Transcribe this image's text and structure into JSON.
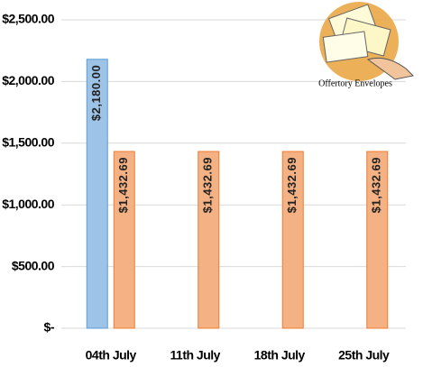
{
  "chart_data": {
    "type": "bar",
    "annotation": "Offertory Envelopes",
    "categories": [
      "04th July",
      "11th July",
      "18th July",
      "25th July"
    ],
    "series": [
      {
        "color": "#9dc3e6",
        "values": [
          2180,
          null,
          null,
          null
        ],
        "value_labels": [
          "$2,180.00",
          null,
          null,
          null
        ]
      },
      {
        "color": "#f4b183",
        "values": [
          1432.69,
          1432.69,
          1432.69,
          1432.69
        ],
        "value_labels": [
          "$1,432.69",
          "$1,432.69",
          "$1,432.69",
          "$1,432.69"
        ]
      }
    ],
    "ylim": [
      0,
      2500
    ],
    "yticks": [
      {
        "value": 0,
        "label": "$-"
      },
      {
        "value": 500,
        "label": "$500.00"
      },
      {
        "value": 1000,
        "label": "$1,000.00"
      },
      {
        "value": 1500,
        "label": "$1,500.00"
      },
      {
        "value": 2000,
        "label": "$2,000.00"
      },
      {
        "value": 2500,
        "label": "$2,500.00"
      }
    ],
    "grid": true
  }
}
